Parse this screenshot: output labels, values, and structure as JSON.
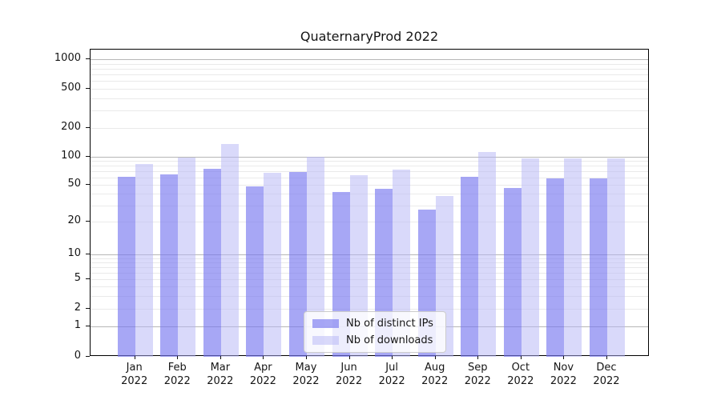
{
  "chart_data": {
    "type": "bar",
    "title": "QuaternaryProd 2022",
    "year": "2022",
    "categories": [
      "Jan",
      "Feb",
      "Mar",
      "Apr",
      "May",
      "Jun",
      "Jul",
      "Aug",
      "Sep",
      "Oct",
      "Nov",
      "Dec"
    ],
    "series": [
      {
        "name": "Nb of distinct IPs",
        "color": "#a7a7f2",
        "fill": "rgba(120,120,240,0.65)",
        "values": [
          61,
          65,
          74,
          48,
          68,
          42,
          45,
          27,
          61,
          46,
          58,
          59
        ]
      },
      {
        "name": "Nb of downloads",
        "color": "#d9d9f8",
        "fill": "rgba(179,179,245,0.5)",
        "values": [
          83,
          97,
          137,
          67,
          100,
          63,
          73,
          38,
          111,
          95,
          95,
          95
        ]
      }
    ],
    "yscale": "symlog",
    "ylim": [
      0,
      1000
    ],
    "yticks": [
      0,
      1,
      2,
      5,
      10,
      20,
      50,
      100,
      200,
      500,
      1000
    ],
    "grid": true,
    "legend_position": "lower center"
  },
  "colors": {
    "background": "#ffffff",
    "spine": "#000000",
    "major_grid": "#b6b6b6",
    "minor_grid": "#eaeaea",
    "text": "#151515"
  }
}
